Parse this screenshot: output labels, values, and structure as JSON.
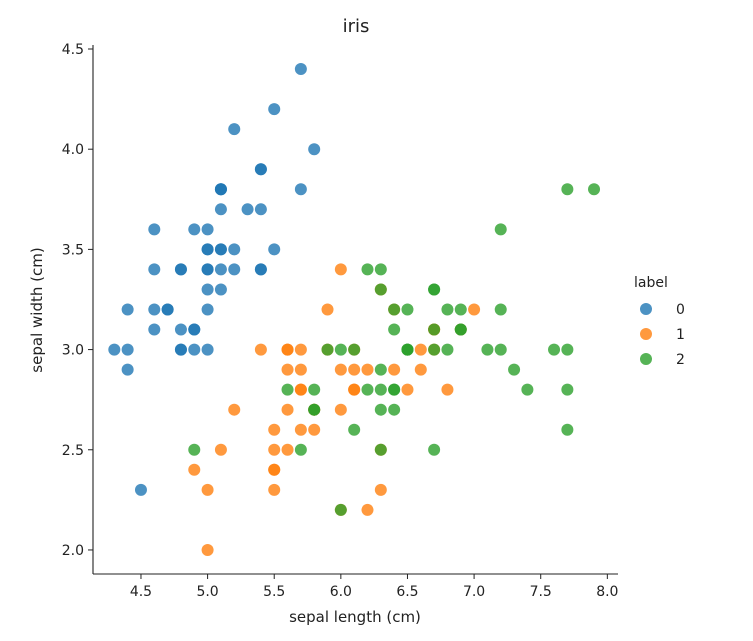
{
  "chart_data": {
    "type": "scatter",
    "title": "iris",
    "xlabel": "sepal length (cm)",
    "ylabel": "sepal width (cm)",
    "xlim": [
      4.14,
      8.08
    ],
    "ylim": [
      1.88,
      4.52
    ],
    "xticks": [
      4.5,
      5.0,
      5.5,
      6.0,
      6.5,
      7.0,
      7.5,
      8.0
    ],
    "xtick_labels": [
      "4.5",
      "5.0",
      "5.5",
      "6.0",
      "6.5",
      "7.0",
      "7.5",
      "8.0"
    ],
    "yticks": [
      2.0,
      2.5,
      3.0,
      3.5,
      4.0,
      4.5
    ],
    "ytick_labels": [
      "2.0",
      "2.5",
      "3.0",
      "3.5",
      "4.0",
      "4.5"
    ],
    "grid": false,
    "legend": {
      "title": "label",
      "position": "right",
      "entries": [
        "0",
        "1",
        "2"
      ]
    },
    "series": [
      {
        "name": "0",
        "color": "#1f77b4",
        "x": [
          5.1,
          4.9,
          4.7,
          4.6,
          5.0,
          5.4,
          4.6,
          5.0,
          4.4,
          4.9,
          5.4,
          4.8,
          4.8,
          4.3,
          5.8,
          5.7,
          5.4,
          5.1,
          5.7,
          5.1,
          5.4,
          5.1,
          4.6,
          5.1,
          4.8,
          5.0,
          5.0,
          5.2,
          5.2,
          4.7,
          4.8,
          5.4,
          5.2,
          5.5,
          4.9,
          5.0,
          5.5,
          4.9,
          4.4,
          5.1,
          5.0,
          4.5,
          4.4,
          5.0,
          5.1,
          4.8,
          5.1,
          4.6,
          5.3,
          5.0
        ],
        "y": [
          3.5,
          3.0,
          3.2,
          3.1,
          3.6,
          3.9,
          3.4,
          3.4,
          2.9,
          3.1,
          3.7,
          3.4,
          3.0,
          3.0,
          4.0,
          4.4,
          3.9,
          3.5,
          3.8,
          3.8,
          3.4,
          3.7,
          3.6,
          3.3,
          3.4,
          3.0,
          3.4,
          3.5,
          3.4,
          3.2,
          3.1,
          3.4,
          4.1,
          4.2,
          3.1,
          3.2,
          3.5,
          3.6,
          3.0,
          3.4,
          3.5,
          2.3,
          3.2,
          3.5,
          3.8,
          3.0,
          3.8,
          3.2,
          3.7,
          3.3
        ]
      },
      {
        "name": "1",
        "color": "#ff7f0e",
        "x": [
          7.0,
          6.4,
          6.9,
          5.5,
          6.5,
          5.7,
          6.3,
          4.9,
          6.6,
          5.2,
          5.0,
          5.9,
          6.0,
          6.1,
          5.6,
          6.7,
          5.6,
          5.8,
          6.2,
          5.6,
          5.9,
          6.1,
          6.3,
          6.1,
          6.4,
          6.6,
          6.8,
          6.7,
          6.0,
          5.7,
          5.5,
          5.5,
          5.8,
          6.0,
          5.4,
          6.0,
          6.7,
          6.3,
          5.6,
          5.5,
          5.5,
          6.1,
          5.8,
          5.0,
          5.6,
          5.7,
          5.7,
          6.2,
          5.1,
          5.7
        ],
        "y": [
          3.2,
          3.2,
          3.1,
          2.3,
          2.8,
          2.8,
          3.3,
          2.4,
          2.9,
          2.7,
          2.0,
          3.0,
          2.2,
          2.9,
          2.9,
          3.1,
          3.0,
          2.7,
          2.2,
          2.5,
          3.2,
          2.8,
          2.5,
          2.8,
          2.9,
          3.0,
          2.8,
          3.0,
          2.9,
          2.6,
          2.4,
          2.4,
          2.7,
          2.7,
          3.0,
          3.4,
          3.1,
          2.3,
          3.0,
          2.5,
          2.6,
          3.0,
          2.6,
          2.3,
          2.7,
          3.0,
          2.9,
          2.9,
          2.5,
          2.8
        ]
      },
      {
        "name": "2",
        "color": "#2ca02c",
        "x": [
          6.3,
          5.8,
          7.1,
          6.3,
          6.5,
          7.6,
          4.9,
          7.3,
          6.7,
          7.2,
          6.5,
          6.4,
          6.8,
          5.7,
          5.8,
          6.4,
          6.5,
          7.7,
          7.7,
          6.0,
          6.9,
          5.6,
          7.7,
          6.3,
          6.7,
          7.2,
          6.2,
          6.1,
          6.4,
          7.2,
          7.4,
          7.9,
          6.4,
          6.3,
          6.1,
          7.7,
          6.3,
          6.4,
          6.0,
          6.9,
          6.7,
          6.9,
          5.8,
          6.8,
          6.7,
          6.7,
          6.3,
          6.5,
          6.2,
          5.9
        ],
        "y": [
          3.3,
          2.7,
          3.0,
          2.9,
          3.0,
          3.0,
          2.5,
          2.9,
          2.5,
          3.6,
          3.2,
          2.7,
          3.0,
          2.5,
          2.8,
          3.2,
          3.0,
          3.8,
          2.6,
          2.2,
          3.2,
          2.8,
          2.8,
          2.7,
          3.3,
          3.2,
          2.8,
          3.0,
          2.8,
          3.0,
          2.8,
          3.8,
          2.8,
          2.8,
          2.6,
          3.0,
          3.4,
          3.1,
          3.0,
          3.1,
          3.1,
          3.1,
          2.7,
          3.2,
          3.3,
          3.0,
          2.5,
          3.0,
          3.4,
          3.0
        ]
      }
    ]
  }
}
